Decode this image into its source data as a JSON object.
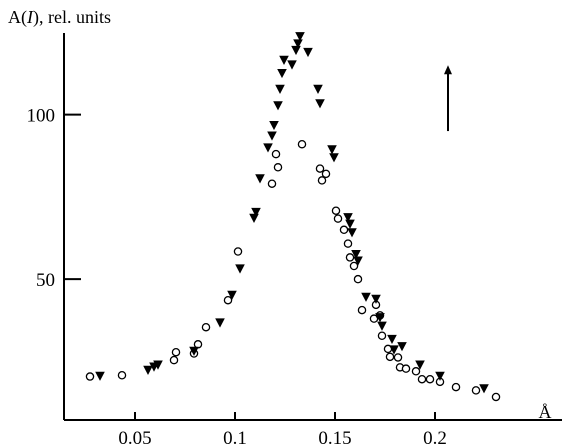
{
  "chart_data": {
    "type": "scatter",
    "title": "",
    "ylabel": {
      "prefix": "A(",
      "symbol": "I",
      "suffix": "), rel. units"
    },
    "xlabel": "Å",
    "xlim": [
      0.0145,
      0.2635
    ],
    "ylim": [
      7.2,
      124.8
    ],
    "xticks": [
      {
        "value": 0.05,
        "label": "0.05"
      },
      {
        "value": 0.1,
        "label": "0.1"
      },
      {
        "value": 0.15,
        "label": "0.15"
      },
      {
        "value": 0.2,
        "label": "0.2"
      }
    ],
    "yticks": [
      {
        "value": 50,
        "label": "50"
      },
      {
        "value": 100,
        "label": "100"
      }
    ],
    "grid": false,
    "legend": "none",
    "annotations": [
      {
        "type": "arrow",
        "direction": "up",
        "x": 0.2065,
        "y_from": 95,
        "y_to": 115
      }
    ],
    "series": [
      {
        "marker": "open-circle",
        "points": [
          [
            0.0275,
            20.4
          ],
          [
            0.0435,
            20.8
          ],
          [
            0.0695,
            25.4
          ],
          [
            0.0705,
            27.8
          ],
          [
            0.0795,
            27.4
          ],
          [
            0.0815,
            30.2
          ],
          [
            0.0855,
            35.4
          ],
          [
            0.0965,
            43.6
          ],
          [
            0.1015,
            58.4
          ],
          [
            0.1185,
            79.0
          ],
          [
            0.1205,
            88.0
          ],
          [
            0.1215,
            84.0
          ],
          [
            0.1335,
            91.0
          ],
          [
            0.1425,
            83.6
          ],
          [
            0.1435,
            80.0
          ],
          [
            0.1455,
            82.0
          ],
          [
            0.1505,
            70.8
          ],
          [
            0.1515,
            68.4
          ],
          [
            0.1545,
            65.0
          ],
          [
            0.1565,
            60.8
          ],
          [
            0.1575,
            56.6
          ],
          [
            0.1595,
            54.0
          ],
          [
            0.1615,
            50.0
          ],
          [
            0.1635,
            40.6
          ],
          [
            0.1695,
            38.0
          ],
          [
            0.1705,
            42.2
          ],
          [
            0.1725,
            39.0
          ],
          [
            0.1735,
            32.8
          ],
          [
            0.1765,
            28.8
          ],
          [
            0.1775,
            26.4
          ],
          [
            0.1815,
            26.2
          ],
          [
            0.1825,
            23.2
          ],
          [
            0.1855,
            22.8
          ],
          [
            0.1905,
            22.0
          ],
          [
            0.1935,
            19.6
          ],
          [
            0.1975,
            19.6
          ],
          [
            0.2025,
            18.8
          ],
          [
            0.2105,
            17.2
          ],
          [
            0.2205,
            16.2
          ],
          [
            0.2305,
            14.2
          ]
        ]
      },
      {
        "marker": "filled-triangle-down",
        "points": [
          [
            0.0325,
            20.6
          ],
          [
            0.0565,
            22.4
          ],
          [
            0.0595,
            23.4
          ],
          [
            0.0615,
            24.0
          ],
          [
            0.0795,
            28.2
          ],
          [
            0.0925,
            36.8
          ],
          [
            0.0985,
            45.2
          ],
          [
            0.1025,
            53.2
          ],
          [
            0.1095,
            68.6
          ],
          [
            0.1105,
            70.4
          ],
          [
            0.1125,
            80.6
          ],
          [
            0.1165,
            90.0
          ],
          [
            0.1185,
            93.6
          ],
          [
            0.1195,
            96.8
          ],
          [
            0.1215,
            102.8
          ],
          [
            0.1225,
            107.8
          ],
          [
            0.1235,
            112.6
          ],
          [
            0.1245,
            116.6
          ],
          [
            0.1285,
            115.2
          ],
          [
            0.1305,
            119.6
          ],
          [
            0.1315,
            121.6
          ],
          [
            0.1325,
            123.8
          ],
          [
            0.1365,
            119.0
          ],
          [
            0.1415,
            107.8
          ],
          [
            0.1425,
            103.4
          ],
          [
            0.1485,
            89.4
          ],
          [
            0.1495,
            87.0
          ],
          [
            0.1565,
            68.8
          ],
          [
            0.1575,
            66.8
          ],
          [
            0.1585,
            64.2
          ],
          [
            0.1605,
            57.6
          ],
          [
            0.1615,
            55.6
          ],
          [
            0.1655,
            44.6
          ],
          [
            0.1705,
            44.0
          ],
          [
            0.1725,
            38.4
          ],
          [
            0.1735,
            35.8
          ],
          [
            0.1785,
            31.8
          ],
          [
            0.1795,
            28.6
          ],
          [
            0.1835,
            29.6
          ],
          [
            0.1925,
            24.0
          ],
          [
            0.2025,
            20.6
          ],
          [
            0.2245,
            16.8
          ]
        ]
      }
    ]
  }
}
